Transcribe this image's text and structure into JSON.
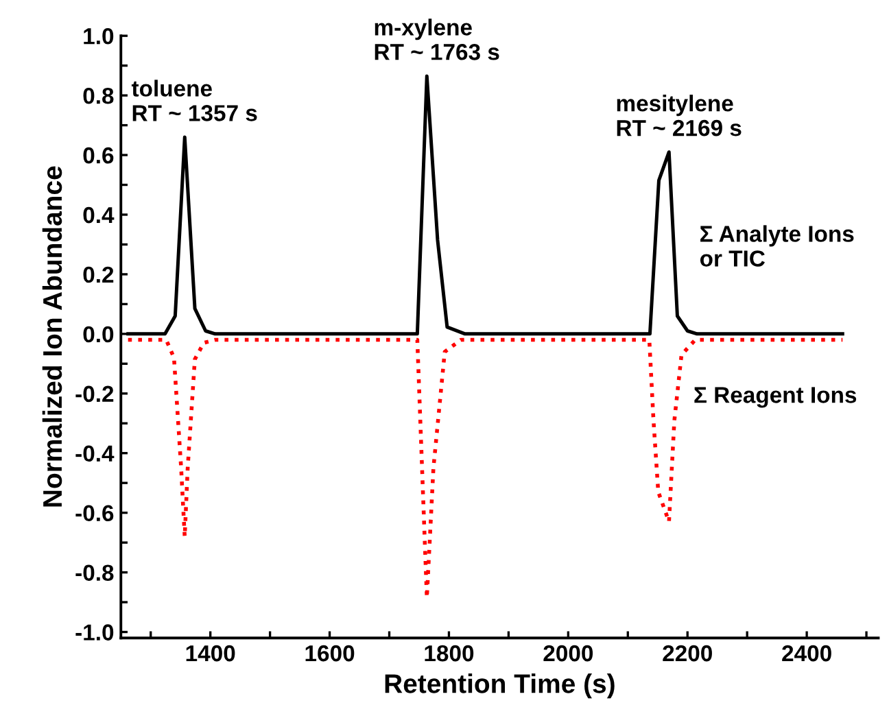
{
  "chart_data": {
    "type": "line",
    "xlabel": "Retention Time (s)",
    "ylabel": "Normalized Ion Abundance",
    "xlim": [
      1250,
      2520
    ],
    "ylim": [
      -1.02,
      1.0
    ],
    "xticks": [
      {
        "value": 1300,
        "label": null
      },
      1400,
      {
        "value": 1500,
        "label": null
      },
      1600,
      {
        "value": 1700,
        "label": null
      },
      1800,
      {
        "value": 1900,
        "label": null
      },
      2000,
      {
        "value": 2100,
        "label": null
      },
      2200,
      {
        "value": 2300,
        "label": null
      },
      2400,
      {
        "value": 2500,
        "label": null
      }
    ],
    "yticks": [
      {
        "value": -1.0,
        "label": "-1.0"
      },
      {
        "value": -0.9,
        "label": null
      },
      {
        "value": -0.8,
        "label": "-0.8"
      },
      {
        "value": -0.7,
        "label": null
      },
      {
        "value": -0.6,
        "label": "-0.6"
      },
      {
        "value": -0.5,
        "label": null
      },
      {
        "value": -0.4,
        "label": "-0.4"
      },
      {
        "value": -0.3,
        "label": null
      },
      {
        "value": -0.2,
        "label": "-0.2"
      },
      {
        "value": -0.1,
        "label": null
      },
      {
        "value": 0.0,
        "label": "0.0"
      },
      {
        "value": 0.1,
        "label": null
      },
      {
        "value": 0.2,
        "label": "0.2"
      },
      {
        "value": 0.3,
        "label": null
      },
      {
        "value": 0.4,
        "label": "0.4"
      },
      {
        "value": 0.5,
        "label": null
      },
      {
        "value": 0.6,
        "label": "0.6"
      },
      {
        "value": 0.7,
        "label": null
      },
      {
        "value": 0.8,
        "label": "0.8"
      },
      {
        "value": 0.9,
        "label": null
      },
      {
        "value": 1.0,
        "label": "1.0"
      }
    ],
    "grid": false,
    "legend": false,
    "series": [
      {
        "name": "Σ Analyte Ions\nor TIC",
        "color": "#000000",
        "line_style": "solid",
        "x": [
          1262,
          1324,
          1341,
          1357,
          1374,
          1392,
          1408,
          1747,
          1763,
          1781,
          1797,
          1827,
          2137,
          2152,
          2169,
          2183,
          2200,
          2216,
          2460
        ],
        "values": [
          0,
          0,
          0.06,
          0.66,
          0.085,
          0.01,
          0,
          0,
          0.865,
          0.315,
          0.023,
          0,
          0,
          0.515,
          0.61,
          0.06,
          0.01,
          0,
          0
        ]
      },
      {
        "name": "Σ Reagent Ions",
        "color": "#ff0000",
        "line_style": "dotted",
        "x": [
          1262,
          1326,
          1339,
          1351,
          1357,
          1362,
          1374,
          1389,
          1408,
          1747,
          1752,
          1763,
          1774,
          1793,
          1820,
          2136,
          2143,
          2151,
          2169,
          2178,
          2190,
          2213,
          2460
        ],
        "values": [
          -0.02,
          -0.02,
          -0.08,
          -0.45,
          -0.68,
          -0.45,
          -0.085,
          -0.03,
          -0.02,
          -0.02,
          -0.29,
          -0.885,
          -0.45,
          -0.06,
          -0.02,
          -0.02,
          -0.29,
          -0.53,
          -0.63,
          -0.29,
          -0.07,
          -0.02,
          -0.02
        ]
      }
    ],
    "annotations": [
      {
        "text": "toluene\nRT ~ 1357 s",
        "x": 1357,
        "y": 0.66
      },
      {
        "text": "m-xylene\nRT ~ 1763 s",
        "x": 1763,
        "y": 0.865
      },
      {
        "text": "mesitylene\nRT ~ 2169 s",
        "x": 2169,
        "y": 0.61
      }
    ]
  }
}
